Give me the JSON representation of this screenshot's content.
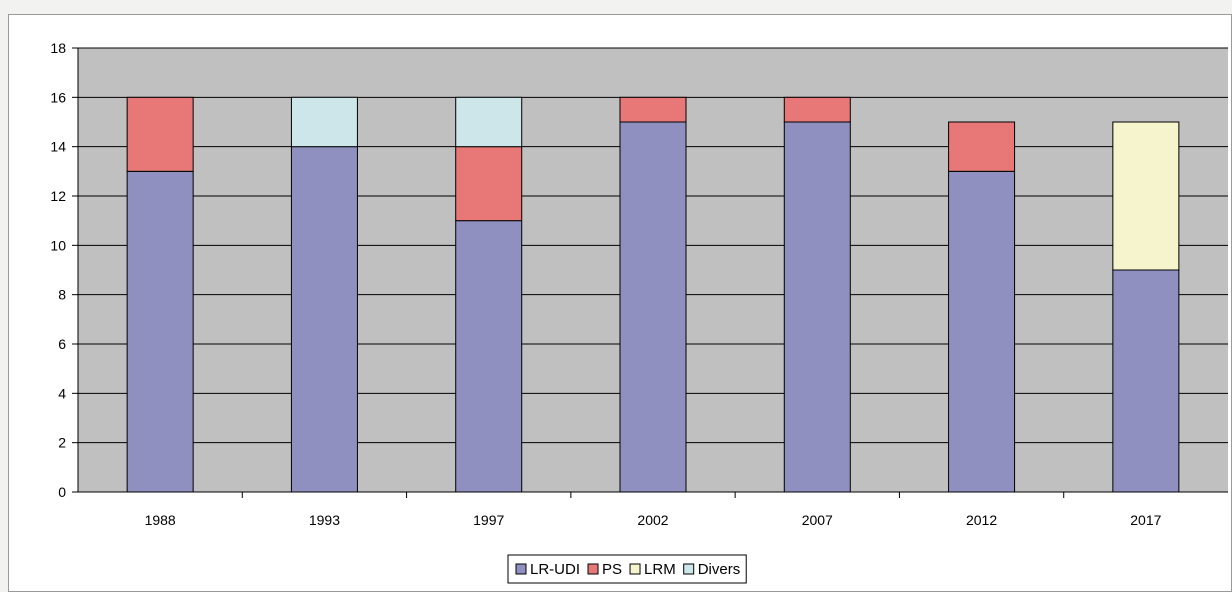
{
  "chart_data": {
    "type": "bar",
    "stacked": true,
    "categories": [
      "1988",
      "1993",
      "1997",
      "2002",
      "2007",
      "2012",
      "2017"
    ],
    "series": [
      {
        "name": "LR-UDI",
        "color": "#9090c0",
        "values": [
          13,
          14,
          11,
          15,
          15,
          13,
          9
        ]
      },
      {
        "name": "PS",
        "color": "#e87878",
        "values": [
          3,
          0,
          3,
          1,
          1,
          2,
          0
        ]
      },
      {
        "name": "LRM",
        "color": "#f6f4cc",
        "values": [
          0,
          0,
          0,
          0,
          0,
          0,
          6
        ]
      },
      {
        "name": "Divers",
        "color": "#cce6ea",
        "values": [
          0,
          2,
          2,
          0,
          0,
          0,
          0
        ]
      }
    ],
    "ylim": [
      0,
      18
    ],
    "yticks": [
      0,
      2,
      4,
      6,
      8,
      10,
      12,
      14,
      16,
      18
    ],
    "grid": true,
    "plot_background": "#c0c0c0",
    "legend_position": "bottom",
    "title": "",
    "xlabel": "",
    "ylabel": ""
  }
}
